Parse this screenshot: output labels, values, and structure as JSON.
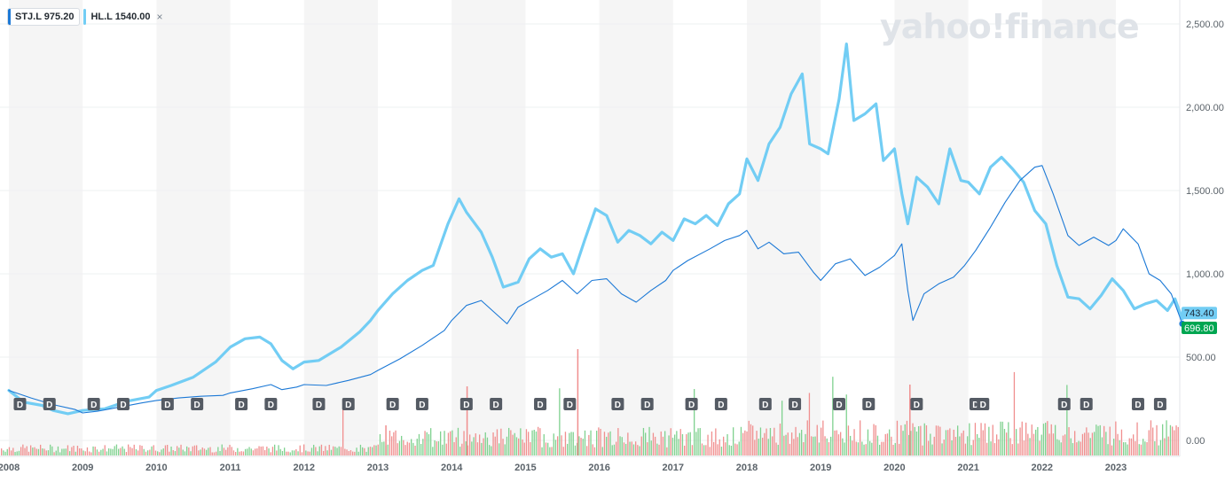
{
  "legend": {
    "series1_label": "STJ.L 975.20",
    "series2_label": "HL.L 1540.00",
    "close_symbol": "×"
  },
  "watermark": "yahoo!finance",
  "colors": {
    "stj": "#1c79d6",
    "hl": "#72cdf4",
    "up_volume": "#7fd18f",
    "down_volume": "#f08f8f",
    "band": "#f5f5f5",
    "last_price_green": "#00a651",
    "dividend_marker": "#555b64"
  },
  "chart_data": {
    "type": "line",
    "title": "",
    "x_ticks": [
      "2008",
      "2009",
      "2010",
      "2011",
      "2012",
      "2013",
      "2014",
      "2015",
      "2016",
      "2017",
      "2018",
      "2019",
      "2020",
      "2021",
      "2022",
      "2023"
    ],
    "y_ticks": [
      "2,500.00",
      "2,000.00",
      "1,500.00",
      "1,000.00",
      "500.00",
      "0.00"
    ],
    "ylim": [
      0,
      2500
    ],
    "xlim": [
      2008.0,
      2023.95
    ],
    "grid": false,
    "series": [
      {
        "name": "STJ.L",
        "points": [
          [
            2008.0,
            300
          ],
          [
            2008.3,
            255
          ],
          [
            2008.6,
            215
          ],
          [
            2008.9,
            185
          ],
          [
            2009.0,
            165
          ],
          [
            2009.2,
            175
          ],
          [
            2009.5,
            200
          ],
          [
            2009.8,
            225
          ],
          [
            2010.0,
            240
          ],
          [
            2010.3,
            255
          ],
          [
            2010.6,
            265
          ],
          [
            2010.9,
            270
          ],
          [
            2011.0,
            285
          ],
          [
            2011.3,
            310
          ],
          [
            2011.55,
            335
          ],
          [
            2011.7,
            305
          ],
          [
            2011.9,
            320
          ],
          [
            2012.0,
            335
          ],
          [
            2012.3,
            330
          ],
          [
            2012.6,
            360
          ],
          [
            2012.9,
            395
          ],
          [
            2013.0,
            420
          ],
          [
            2013.3,
            490
          ],
          [
            2013.6,
            570
          ],
          [
            2013.9,
            660
          ],
          [
            2014.0,
            720
          ],
          [
            2014.2,
            810
          ],
          [
            2014.4,
            840
          ],
          [
            2014.6,
            760
          ],
          [
            2014.75,
            700
          ],
          [
            2014.9,
            800
          ],
          [
            2015.1,
            850
          ],
          [
            2015.3,
            900
          ],
          [
            2015.5,
            960
          ],
          [
            2015.7,
            880
          ],
          [
            2015.9,
            960
          ],
          [
            2016.1,
            970
          ],
          [
            2016.3,
            880
          ],
          [
            2016.5,
            830
          ],
          [
            2016.7,
            900
          ],
          [
            2016.9,
            960
          ],
          [
            2017.0,
            1020
          ],
          [
            2017.2,
            1080
          ],
          [
            2017.5,
            1150
          ],
          [
            2017.7,
            1200
          ],
          [
            2017.9,
            1230
          ],
          [
            2018.0,
            1260
          ],
          [
            2018.15,
            1150
          ],
          [
            2018.3,
            1190
          ],
          [
            2018.5,
            1120
          ],
          [
            2018.7,
            1130
          ],
          [
            2018.9,
            1010
          ],
          [
            2019.0,
            960
          ],
          [
            2019.2,
            1060
          ],
          [
            2019.4,
            1090
          ],
          [
            2019.6,
            990
          ],
          [
            2019.8,
            1040
          ],
          [
            2020.0,
            1110
          ],
          [
            2020.1,
            1180
          ],
          [
            2020.18,
            900
          ],
          [
            2020.25,
            720
          ],
          [
            2020.4,
            880
          ],
          [
            2020.6,
            940
          ],
          [
            2020.8,
            980
          ],
          [
            2020.95,
            1050
          ],
          [
            2021.1,
            1140
          ],
          [
            2021.3,
            1280
          ],
          [
            2021.5,
            1430
          ],
          [
            2021.7,
            1560
          ],
          [
            2021.9,
            1640
          ],
          [
            2022.0,
            1650
          ],
          [
            2022.15,
            1480
          ],
          [
            2022.35,
            1230
          ],
          [
            2022.5,
            1170
          ],
          [
            2022.7,
            1220
          ],
          [
            2022.9,
            1170
          ],
          [
            2023.0,
            1200
          ],
          [
            2023.1,
            1270
          ],
          [
            2023.3,
            1180
          ],
          [
            2023.45,
            1000
          ],
          [
            2023.6,
            960
          ],
          [
            2023.75,
            880
          ],
          [
            2023.9,
            700
          ]
        ]
      },
      {
        "name": "HL.L",
        "points": [
          [
            2008.0,
            300
          ],
          [
            2008.2,
            230
          ],
          [
            2008.45,
            210
          ],
          [
            2008.6,
            180
          ],
          [
            2008.8,
            160
          ],
          [
            2009.0,
            180
          ],
          [
            2009.3,
            190
          ],
          [
            2009.6,
            235
          ],
          [
            2009.9,
            260
          ],
          [
            2010.0,
            300
          ],
          [
            2010.2,
            330
          ],
          [
            2010.5,
            380
          ],
          [
            2010.8,
            470
          ],
          [
            2011.0,
            560
          ],
          [
            2011.2,
            610
          ],
          [
            2011.4,
            620
          ],
          [
            2011.55,
            580
          ],
          [
            2011.7,
            480
          ],
          [
            2011.85,
            430
          ],
          [
            2012.0,
            470
          ],
          [
            2012.2,
            480
          ],
          [
            2012.5,
            560
          ],
          [
            2012.75,
            650
          ],
          [
            2012.9,
            720
          ],
          [
            2013.0,
            780
          ],
          [
            2013.2,
            880
          ],
          [
            2013.4,
            960
          ],
          [
            2013.6,
            1020
          ],
          [
            2013.75,
            1050
          ],
          [
            2013.95,
            1300
          ],
          [
            2014.1,
            1450
          ],
          [
            2014.2,
            1370
          ],
          [
            2014.4,
            1250
          ],
          [
            2014.55,
            1100
          ],
          [
            2014.7,
            920
          ],
          [
            2014.9,
            950
          ],
          [
            2015.05,
            1090
          ],
          [
            2015.2,
            1150
          ],
          [
            2015.35,
            1100
          ],
          [
            2015.5,
            1120
          ],
          [
            2015.65,
            1000
          ],
          [
            2015.8,
            1200
          ],
          [
            2015.95,
            1390
          ],
          [
            2016.1,
            1350
          ],
          [
            2016.25,
            1190
          ],
          [
            2016.4,
            1260
          ],
          [
            2016.55,
            1230
          ],
          [
            2016.7,
            1180
          ],
          [
            2016.85,
            1250
          ],
          [
            2017.0,
            1200
          ],
          [
            2017.15,
            1330
          ],
          [
            2017.3,
            1300
          ],
          [
            2017.45,
            1350
          ],
          [
            2017.6,
            1290
          ],
          [
            2017.75,
            1420
          ],
          [
            2017.9,
            1480
          ],
          [
            2018.0,
            1690
          ],
          [
            2018.15,
            1560
          ],
          [
            2018.3,
            1780
          ],
          [
            2018.45,
            1880
          ],
          [
            2018.6,
            2080
          ],
          [
            2018.75,
            2200
          ],
          [
            2018.85,
            1780
          ],
          [
            2019.0,
            1750
          ],
          [
            2019.1,
            1720
          ],
          [
            2019.25,
            2050
          ],
          [
            2019.35,
            2380
          ],
          [
            2019.45,
            1920
          ],
          [
            2019.6,
            1960
          ],
          [
            2019.75,
            2020
          ],
          [
            2019.85,
            1680
          ],
          [
            2020.0,
            1750
          ],
          [
            2020.1,
            1480
          ],
          [
            2020.18,
            1300
          ],
          [
            2020.3,
            1580
          ],
          [
            2020.45,
            1520
          ],
          [
            2020.6,
            1420
          ],
          [
            2020.75,
            1750
          ],
          [
            2020.9,
            1560
          ],
          [
            2021.0,
            1550
          ],
          [
            2021.15,
            1480
          ],
          [
            2021.3,
            1640
          ],
          [
            2021.45,
            1700
          ],
          [
            2021.6,
            1630
          ],
          [
            2021.75,
            1550
          ],
          [
            2021.9,
            1380
          ],
          [
            2022.05,
            1300
          ],
          [
            2022.2,
            1050
          ],
          [
            2022.35,
            860
          ],
          [
            2022.5,
            850
          ],
          [
            2022.65,
            790
          ],
          [
            2022.8,
            870
          ],
          [
            2022.95,
            970
          ],
          [
            2023.1,
            900
          ],
          [
            2023.25,
            790
          ],
          [
            2023.4,
            820
          ],
          [
            2023.55,
            840
          ],
          [
            2023.7,
            780
          ],
          [
            2023.8,
            850
          ],
          [
            2023.9,
            730
          ]
        ]
      }
    ],
    "last_price_labels": [
      "743.40",
      "696.80"
    ],
    "dividend_marker_label": "D",
    "dividend_dates": [
      2008.15,
      2008.55,
      2009.15,
      2009.55,
      2010.15,
      2010.55,
      2011.15,
      2011.55,
      2012.2,
      2012.6,
      2013.2,
      2013.6,
      2014.2,
      2014.6,
      2015.2,
      2015.6,
      2016.25,
      2016.65,
      2017.25,
      2017.65,
      2018.25,
      2018.65,
      2019.25,
      2019.65,
      2020.3,
      2021.1,
      2021.2,
      2022.3,
      2022.6,
      2023.3,
      2023.6
    ],
    "volume_note": "volume bars shown relative; no scale printed"
  }
}
